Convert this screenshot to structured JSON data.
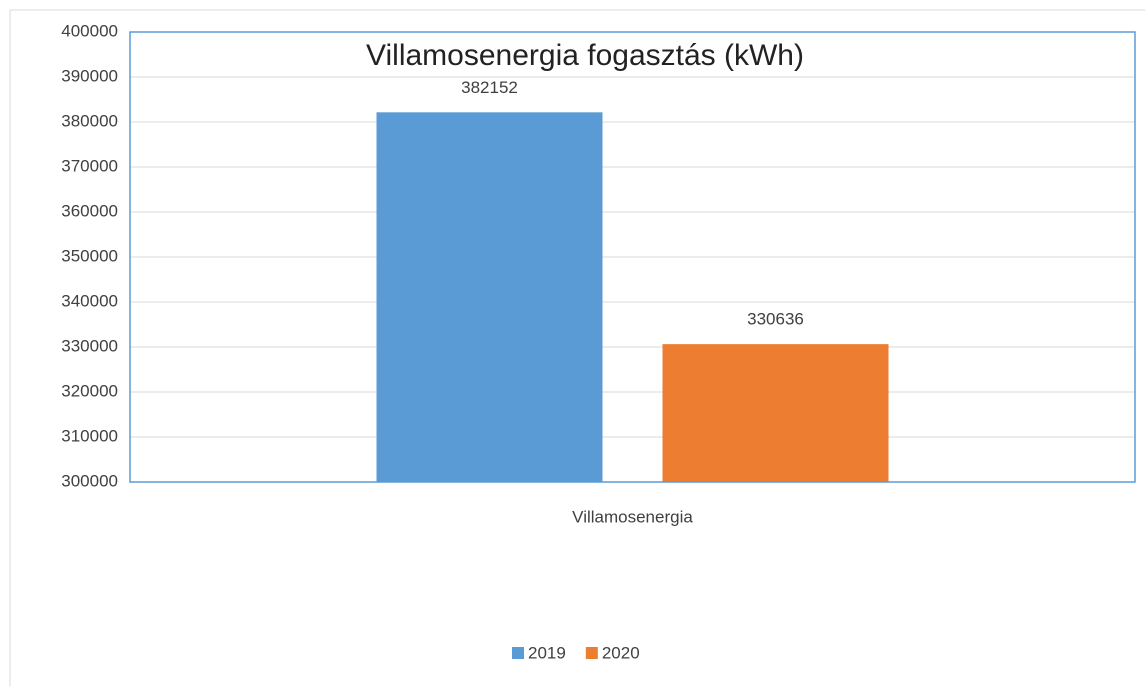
{
  "chart_data": {
    "type": "bar",
    "title": "Villamosenergia fogasztás (kWh)",
    "categories": [
      "Villamosenergia"
    ],
    "series": [
      {
        "name": "2019",
        "color": "#5b9bd5",
        "values": [
          382152
        ]
      },
      {
        "name": "2020",
        "color": "#ed7d31",
        "values": [
          330636
        ]
      }
    ],
    "ylim": [
      300000,
      400000
    ],
    "yticks": [
      300000,
      310000,
      320000,
      330000,
      340000,
      350000,
      360000,
      370000,
      380000,
      390000,
      400000
    ],
    "grid": true,
    "legend": "bottom"
  }
}
